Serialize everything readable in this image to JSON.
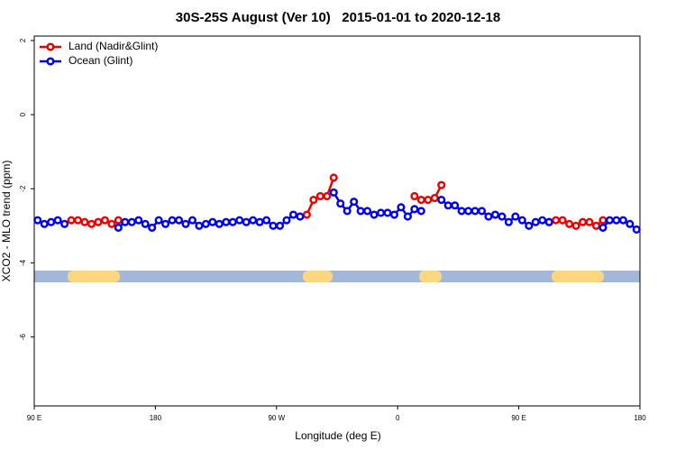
{
  "chart_data": {
    "type": "line",
    "title": "30S-25S August (Ver 10)   2015-01-01 to 2020-12-18",
    "xlabel": "Longitude (deg E)",
    "ylabel": "XCO2 - MLO trend (ppm)",
    "legend": "top-left",
    "xlim": [
      90,
      540
    ],
    "ylim": [
      -7.86,
      2.12
    ],
    "xticks": [
      {
        "value": 90,
        "label": "90 E"
      },
      180,
      {
        "value": 270,
        "label": "90 W"
      },
      {
        "value": 360,
        "label": "0"
      },
      {
        "value": 450,
        "label": "90 E"
      },
      {
        "value": 540,
        "label": "180"
      }
    ],
    "yticks": [
      2,
      0,
      -2,
      -4,
      -6
    ],
    "x": [
      92.5,
      97.5,
      102.5,
      107.5,
      112.5,
      117.5,
      122.5,
      127.5,
      132.5,
      137.5,
      142.5,
      147.5,
      152.5,
      157.5,
      162.5,
      167.5,
      172.5,
      177.5,
      182.5,
      187.5,
      192.5,
      197.5,
      202.5,
      207.5,
      212.5,
      217.5,
      222.5,
      227.5,
      232.5,
      237.5,
      242.5,
      247.5,
      252.5,
      257.5,
      262.5,
      267.5,
      272.5,
      277.5,
      282.5,
      287.5,
      292.5,
      297.5,
      302.5,
      307.5,
      312.5,
      317.5,
      322.5,
      327.5,
      332.5,
      337.5,
      342.5,
      347.5,
      352.5,
      357.5,
      362.5,
      367.5,
      372.5,
      377.5,
      382.5,
      387.5,
      392.5,
      397.5,
      402.5,
      407.5,
      412.5,
      417.5,
      422.5,
      427.5,
      432.5,
      437.5,
      442.5,
      447.5,
      452.5,
      457.5,
      462.5,
      467.5,
      472.5,
      477.5,
      482.5,
      487.5,
      492.5,
      497.5,
      502.5,
      507.5,
      512.5,
      517.5,
      522.5,
      527.5,
      532.5,
      537.5
    ],
    "series": [
      {
        "name": "Land (Nadir&Glint)",
        "color": "#ee0000",
        "values": [
          null,
          null,
          null,
          null,
          null,
          -2.85,
          -2.85,
          -2.9,
          -2.95,
          -2.9,
          -2.85,
          -2.95,
          -2.85,
          null,
          null,
          null,
          null,
          null,
          null,
          null,
          null,
          null,
          null,
          null,
          null,
          null,
          null,
          null,
          null,
          null,
          null,
          null,
          null,
          null,
          null,
          null,
          null,
          null,
          null,
          null,
          -2.7,
          -2.3,
          -2.2,
          -2.2,
          -1.7,
          null,
          null,
          null,
          null,
          null,
          null,
          null,
          null,
          null,
          null,
          null,
          -2.2,
          -2.3,
          -2.3,
          -2.25,
          -1.9,
          null,
          null,
          null,
          null,
          null,
          null,
          null,
          null,
          null,
          null,
          null,
          null,
          null,
          null,
          null,
          -2.9,
          -2.85,
          -2.85,
          -2.95,
          -3.0,
          -2.9,
          -2.9,
          -3.0,
          -2.85,
          null,
          null,
          null,
          null,
          null
        ]
      },
      {
        "name": "Ocean (Glint)",
        "color": "#0000ee",
        "values": [
          -2.85,
          -2.95,
          -2.9,
          -2.85,
          -2.95,
          null,
          null,
          null,
          null,
          null,
          null,
          null,
          -3.05,
          -2.9,
          -2.9,
          -2.85,
          -2.95,
          -3.05,
          -2.85,
          -2.95,
          -2.85,
          -2.85,
          -2.95,
          -2.85,
          -3.0,
          -2.95,
          -2.9,
          -2.95,
          -2.9,
          -2.9,
          -2.85,
          -2.9,
          -2.85,
          -2.9,
          -2.85,
          -3.0,
          -3.0,
          -2.85,
          -2.7,
          -2.75,
          null,
          null,
          null,
          null,
          -2.1,
          -2.4,
          -2.6,
          -2.35,
          -2.6,
          -2.6,
          -2.7,
          -2.65,
          -2.65,
          -2.7,
          -2.5,
          -2.75,
          -2.55,
          -2.6,
          null,
          null,
          -2.3,
          -2.45,
          -2.45,
          -2.6,
          -2.6,
          -2.6,
          -2.6,
          -2.75,
          -2.7,
          -2.75,
          -2.9,
          -2.75,
          -2.85,
          -3.0,
          -2.9,
          -2.85,
          -2.9,
          null,
          null,
          null,
          null,
          null,
          null,
          null,
          -3.05,
          -2.85,
          -2.85,
          -2.85,
          -2.95,
          -3.1
        ]
      }
    ]
  }
}
